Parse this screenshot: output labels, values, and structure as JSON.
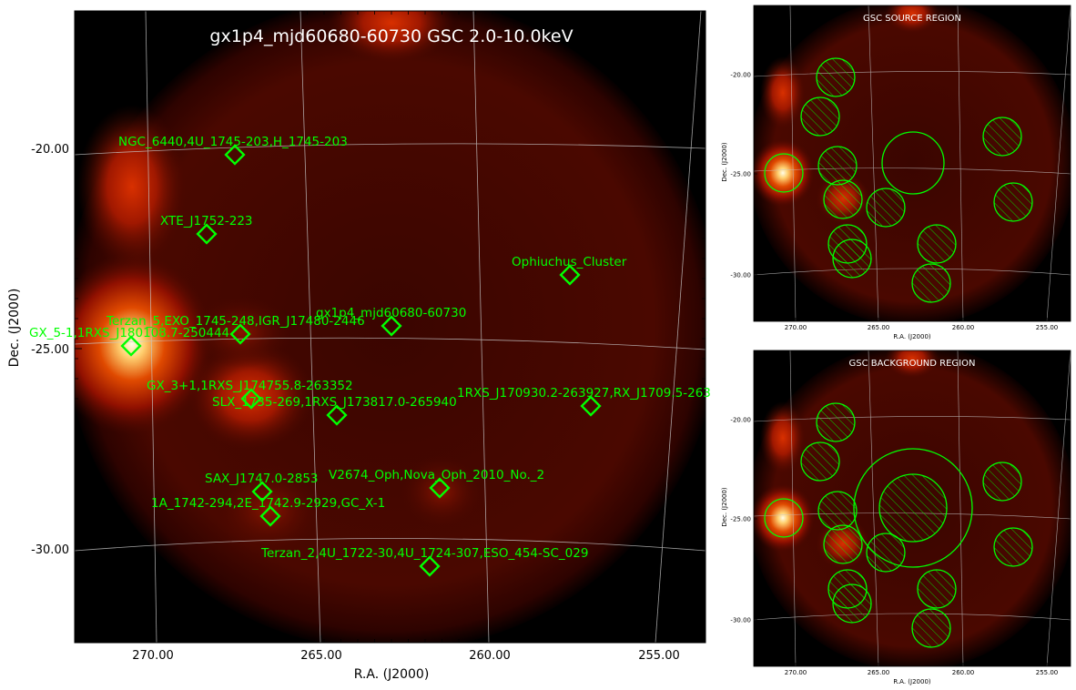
{
  "main_panel": {
    "title": "gx1p4_mjd60680-60730 GSC 2.0-10.0keV",
    "xlabel": "R.A. (J2000)",
    "ylabel": "Dec. (J2000)",
    "x_ticks": [
      "270.00",
      "265.00",
      "260.00",
      "255.00"
    ],
    "y_ticks": [
      "-20.00",
      "-25.00",
      "-30.00"
    ],
    "sources": [
      {
        "label": "NGC_6440,4U_1745-203,H_1745-203"
      },
      {
        "label": "XTE_J1752-223"
      },
      {
        "label": "Ophiuchus_Cluster"
      },
      {
        "label": "gx1p4_mjd60680-60730"
      },
      {
        "label": "Terzan_5,EXO_1745-248,IGR_J17480-2446"
      },
      {
        "label": "GX_5-1,1RXS_J180108.7-250444"
      },
      {
        "label": "GX_3+1,1RXS_J174755.8-263352"
      },
      {
        "label": "SLX_1735-269,1RXS_J173817.0-265940"
      },
      {
        "label": "1RXS_J170930.2-263927,RX_J1709.5-263"
      },
      {
        "label": "SAX_J1747.0-2853"
      },
      {
        "label": "V2674_Oph,Nova_Oph_2010_No._2"
      },
      {
        "label": "1A_1742-294,2E_1742.9-2929,GC_X-1"
      },
      {
        "label": "Terzan_2,4U_1722-30,4U_1724-307,ESO_454-SC_029"
      }
    ]
  },
  "source_panel": {
    "title": "GSC SOURCE REGION",
    "xlabel": "R.A. (J2000)",
    "ylabel": "Dec. (J2000)",
    "x_ticks": [
      "270.00",
      "265.00",
      "260.00",
      "255.00"
    ],
    "y_ticks": [
      "-20.00",
      "-25.00",
      "-30.00"
    ]
  },
  "background_panel": {
    "title": "GSC BACKGROUND REGION",
    "xlabel": "R.A. (J2000)",
    "ylabel": "Dec. (J2000)",
    "x_ticks": [
      "270.00",
      "265.00",
      "260.00",
      "255.00"
    ],
    "y_ticks": [
      "-20.00",
      "-25.00",
      "-30.00"
    ]
  },
  "colors": {
    "region": "#00ff00",
    "image_background": "#000000",
    "grid": "#c8c8c8",
    "text_on_image": "#ffffff"
  }
}
